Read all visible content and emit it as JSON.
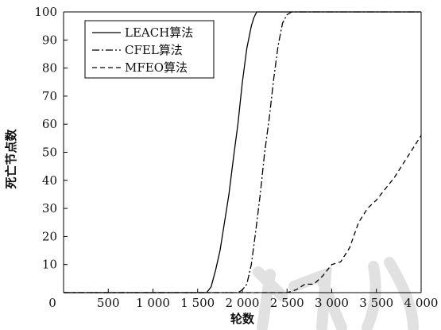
{
  "chart_data": {
    "type": "line",
    "xlabel": "轮数",
    "ylabel": "死亡节点数",
    "xlim": [
      0,
      4000
    ],
    "ylim": [
      0,
      100
    ],
    "x_ticks": [
      {
        "value": 0,
        "label": "0"
      },
      {
        "value": 500,
        "label": "500"
      },
      {
        "value": 1000,
        "label": "1 000"
      },
      {
        "value": 1500,
        "label": "1 500"
      },
      {
        "value": 2000,
        "label": "2 000"
      },
      {
        "value": 2500,
        "label": "2 500"
      },
      {
        "value": 3000,
        "label": "3 000"
      },
      {
        "value": 3500,
        "label": "3 500"
      },
      {
        "value": 4000,
        "label": "4 000"
      }
    ],
    "y_ticks": [
      {
        "value": 10,
        "label": "10"
      },
      {
        "value": 20,
        "label": "20"
      },
      {
        "value": 30,
        "label": "30"
      },
      {
        "value": 40,
        "label": "40"
      },
      {
        "value": 50,
        "label": "50"
      },
      {
        "value": 60,
        "label": "60"
      },
      {
        "value": 70,
        "label": "70"
      },
      {
        "value": 80,
        "label": "80"
      },
      {
        "value": 90,
        "label": "90"
      },
      {
        "value": 100,
        "label": "100"
      }
    ],
    "legend_position": "top-left",
    "grid": false,
    "series": [
      {
        "name": "LEACH算法",
        "style": "solid",
        "color": "#000000",
        "x": [
          0,
          1600,
          1650,
          1700,
          1750,
          1800,
          1850,
          1900,
          1950,
          2000,
          2050,
          2100,
          2130,
          2160,
          2200,
          2300,
          4000
        ],
        "y": [
          0,
          0,
          2,
          8,
          15,
          25,
          35,
          48,
          60,
          75,
          87,
          95,
          98,
          100,
          100,
          100,
          100
        ]
      },
      {
        "name": "CFEL算法",
        "style": "dashdot",
        "color": "#000000",
        "x": [
          0,
          1950,
          2000,
          2050,
          2100,
          2150,
          2200,
          2250,
          2300,
          2350,
          2400,
          2450,
          2500,
          2550,
          2700,
          4000
        ],
        "y": [
          0,
          0,
          1,
          3,
          10,
          22,
          35,
          50,
          62,
          76,
          88,
          96,
          99,
          100,
          100,
          100
        ]
      },
      {
        "name": "MFEO算法",
        "style": "dashed",
        "color": "#000000",
        "x": [
          0,
          2500,
          2600,
          2700,
          2800,
          2900,
          3000,
          3100,
          3200,
          3300,
          3400,
          3500,
          3600,
          3700,
          3800,
          3900,
          4000
        ],
        "y": [
          0,
          0,
          1,
          3,
          3,
          6,
          10,
          11,
          16,
          25,
          30,
          33,
          37,
          41,
          46,
          51,
          56
        ]
      }
    ]
  }
}
